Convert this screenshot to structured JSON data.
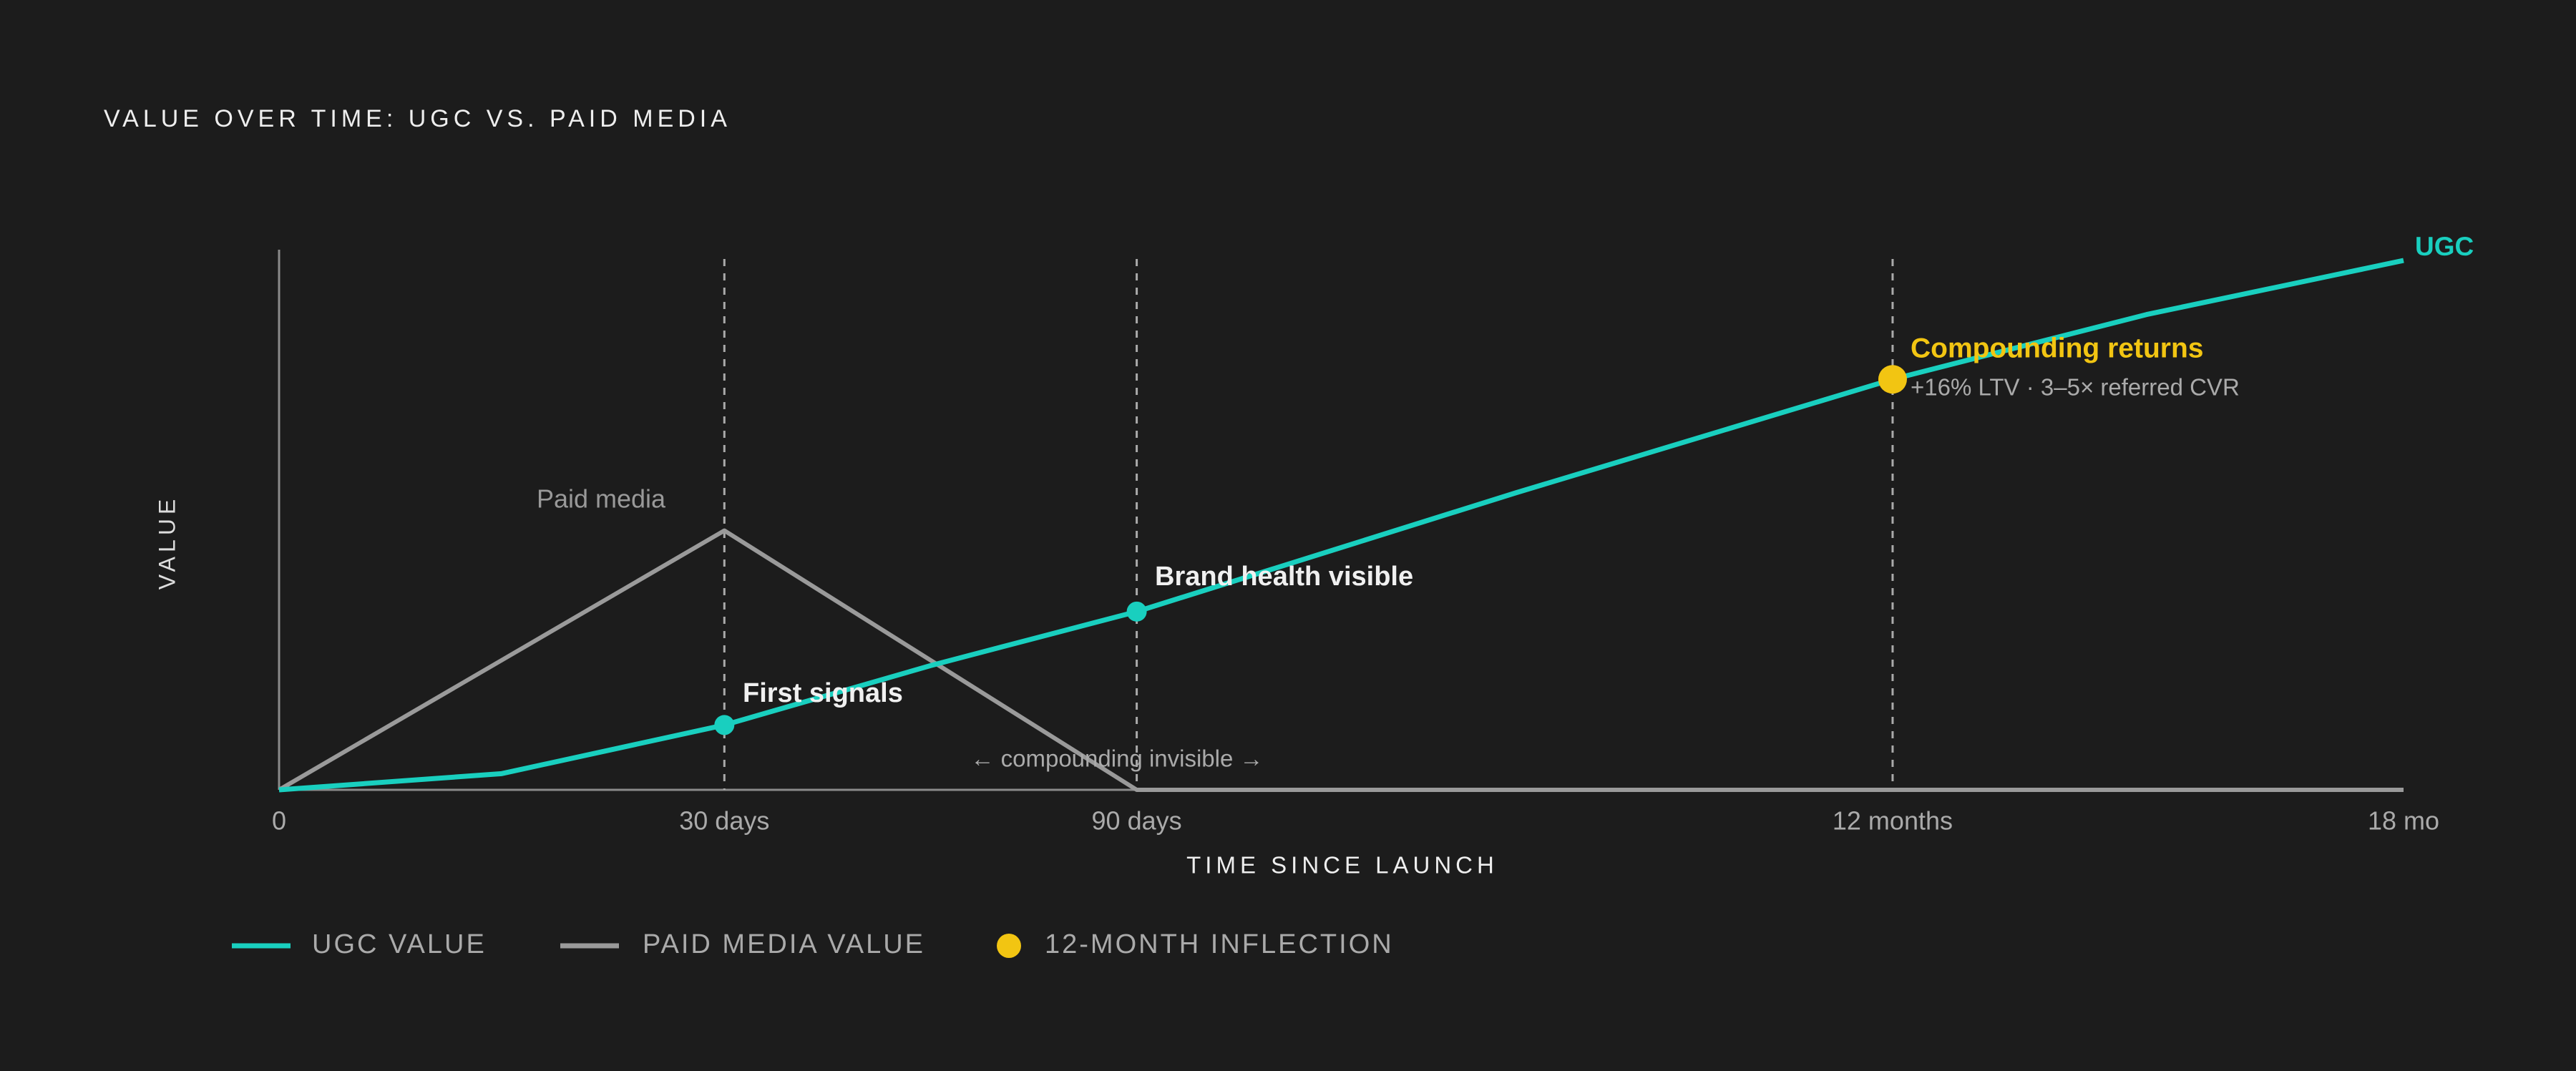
{
  "chart_data": {
    "type": "line",
    "title": "VALUE OVER TIME: UGC VS. PAID MEDIA",
    "x_label": "TIME SINCE LAUNCH",
    "y_label": "VALUE",
    "xlim": [
      0,
      548
    ],
    "xticks": [
      0,
      {
        "value": 30,
        "label": "30 days"
      },
      {
        "value": 90,
        "label": "90 days"
      },
      {
        "value": 365,
        "label": "12 months"
      },
      {
        "value": 548,
        "label": "18 mo"
      }
    ],
    "ylim": [
      0,
      100
    ],
    "series": [
      {
        "name": "UGC VALUE",
        "end_label": "UGC",
        "color": "#19cfbf",
        "x": [
          0,
          15,
          30,
          60,
          90,
          228,
          365,
          456,
          548
        ],
        "values": [
          0,
          3,
          12,
          23,
          33,
          55,
          76,
          88,
          98
        ]
      },
      {
        "name": "PAID MEDIA VALUE",
        "end_label": "Paid media",
        "color": "#9a9a9a",
        "x": [
          0,
          30,
          90,
          548
        ],
        "values": [
          0,
          48,
          0,
          0
        ]
      }
    ],
    "highlight": {
      "name": "12-MONTH INFLECTION",
      "color": "#f2c512"
    },
    "annotations": [
      "First signals",
      "Brand health visible",
      "Compounding returns",
      "+16% LTV · 3–5× referred CVR",
      "← compounding invisible →"
    ]
  }
}
